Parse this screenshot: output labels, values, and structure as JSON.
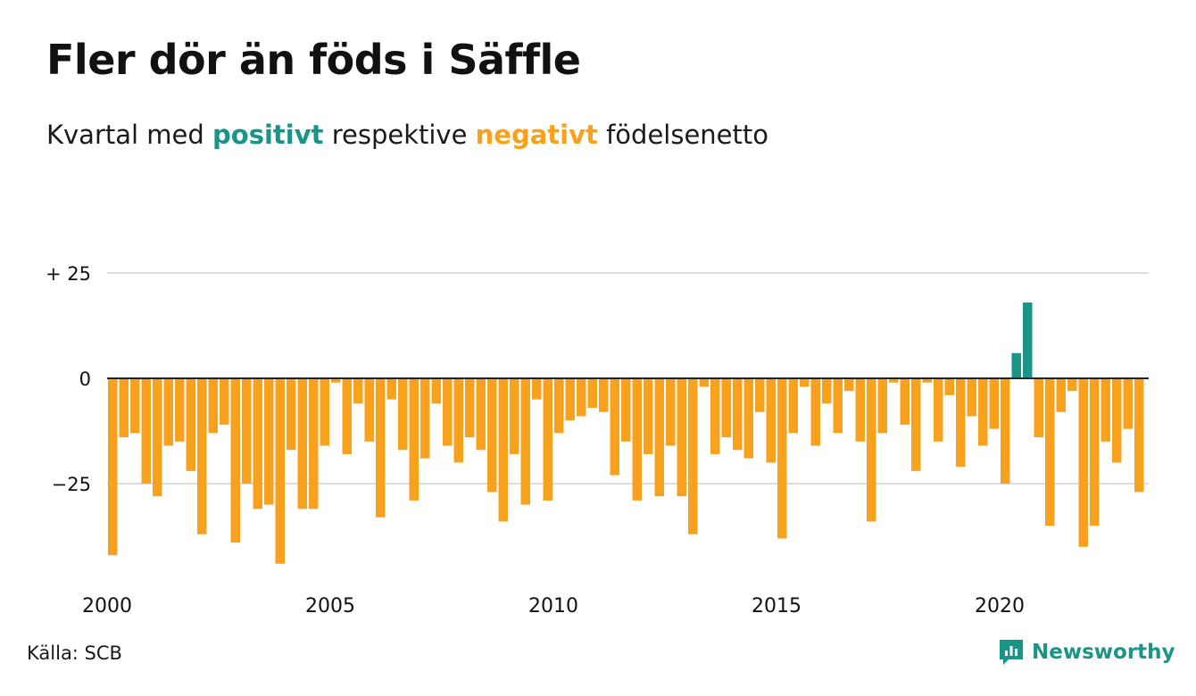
{
  "title": "Fler dör än föds i Säffle",
  "subtitle": {
    "prefix": "Kvartal med ",
    "positive": "positivt",
    "middle": " respektive ",
    "negative": "negativt",
    "suffix": " födelsenetto"
  },
  "source": "Källa: SCB",
  "brand": "Newsworthy",
  "colors": {
    "positive": "#1a9486",
    "negative": "#f8a11c",
    "grid": "#dddddd",
    "axis_text": "#111111"
  },
  "chart_data": {
    "type": "bar",
    "unit": "quarter",
    "start_year": 2000,
    "ylim": [
      -44,
      30
    ],
    "yticks": [
      {
        "value": 25,
        "label": "+ 25"
      },
      {
        "value": 0,
        "label": "0"
      },
      {
        "value": -25,
        "label": "−25"
      }
    ],
    "xticks": [
      {
        "value": 2000,
        "label": "2000"
      },
      {
        "value": 2005,
        "label": "2005"
      },
      {
        "value": 2010,
        "label": "2010"
      },
      {
        "value": 2015,
        "label": "2015"
      },
      {
        "value": 2020,
        "label": "2020"
      }
    ],
    "grid": true,
    "values": [
      -42,
      -14,
      -13,
      -25,
      -28,
      -16,
      -15,
      -22,
      -37,
      -13,
      -11,
      -39,
      -25,
      -31,
      -30,
      -44,
      -17,
      -31,
      -31,
      -16,
      -1,
      -18,
      -6,
      -15,
      -33,
      -5,
      -17,
      -29,
      -19,
      -6,
      -16,
      -20,
      -14,
      -17,
      -27,
      -34,
      -18,
      -30,
      -5,
      -29,
      -13,
      -10,
      -9,
      -7,
      -8,
      -23,
      -15,
      -29,
      -18,
      -28,
      -16,
      -28,
      -37,
      -2,
      -18,
      -14,
      -17,
      -19,
      -8,
      -20,
      -38,
      -13,
      -2,
      -16,
      -6,
      -13,
      -3,
      -15,
      -34,
      -13,
      -1,
      -11,
      -22,
      -1,
      -15,
      -4,
      -21,
      -9,
      -16,
      -12,
      -25,
      6,
      18,
      -14,
      -35,
      -8,
      -3,
      -40,
      -35,
      -15,
      -20,
      -12,
      -27
    ]
  }
}
